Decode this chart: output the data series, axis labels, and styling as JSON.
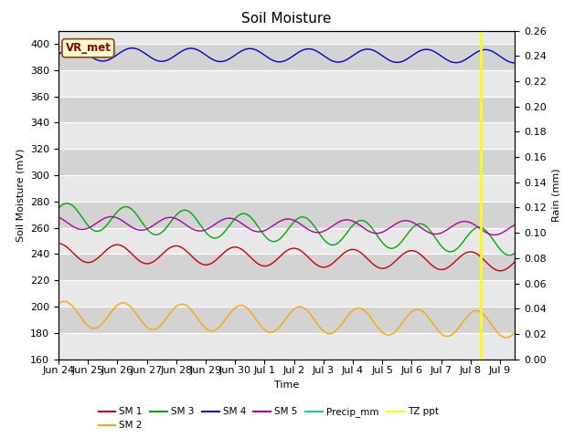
{
  "title": "Soil Moisture",
  "ylabel_left": "Soil Moisture (mV)",
  "ylabel_right": "Rain (mm)",
  "xlabel": "Time",
  "ylim_left": [
    160,
    410
  ],
  "ylim_right": [
    0.0,
    0.26
  ],
  "annotation_text": "VR_met",
  "series": {
    "SM1": {
      "color": "#CC0000",
      "base": 241,
      "trend": -0.45,
      "amp": 7,
      "period": 2.0,
      "phase": 0.5
    },
    "SM2": {
      "color": "#FFA500",
      "base": 194,
      "trend": -0.5,
      "amp": 10,
      "period": 2.0,
      "phase": 0.3
    },
    "SM3": {
      "color": "#00AA00",
      "base": 269,
      "trend": -1.3,
      "amp": 10,
      "period": 2.0,
      "phase": 0.2
    },
    "SM4": {
      "color": "#0000CC",
      "base": 392,
      "trend": -0.1,
      "amp": 5,
      "period": 2.0,
      "phase": 0.0
    },
    "SM5": {
      "color": "#AA00AA",
      "base": 264,
      "trend": -0.3,
      "amp": 5,
      "period": 2.0,
      "phase": 0.7
    }
  },
  "vline_x": 14.33,
  "vline_color": "#FFFF00",
  "num_days": 15.5,
  "x_tick_labels": [
    "Jun 24",
    "Jun 25",
    "Jun 26",
    "Jun 27",
    "Jun 28",
    "Jun 29",
    "Jun 30",
    "Jul 1",
    "Jul 2",
    "Jul 3",
    "Jul 4",
    "Jul 5",
    "Jul 6",
    "Jul 7",
    "Jul 8",
    "Jul 9"
  ],
  "bg_light": "#E8E8E8",
  "bg_dark": "#D3D3D3",
  "gridcolor": "#FFFFFF",
  "title_fontsize": 11,
  "legend_row1": [
    {
      "label": "SM 1",
      "color": "#CC0000"
    },
    {
      "label": "SM 2",
      "color": "#FFA500"
    },
    {
      "label": "SM 3",
      "color": "#00AA00"
    },
    {
      "label": "SM 4",
      "color": "#0000CC"
    },
    {
      "label": "SM 5",
      "color": "#AA00AA"
    },
    {
      "label": "Precip_mm",
      "color": "#00CCCC"
    }
  ],
  "legend_row2": [
    {
      "label": "TZ ppt",
      "color": "#FFFF00"
    }
  ]
}
